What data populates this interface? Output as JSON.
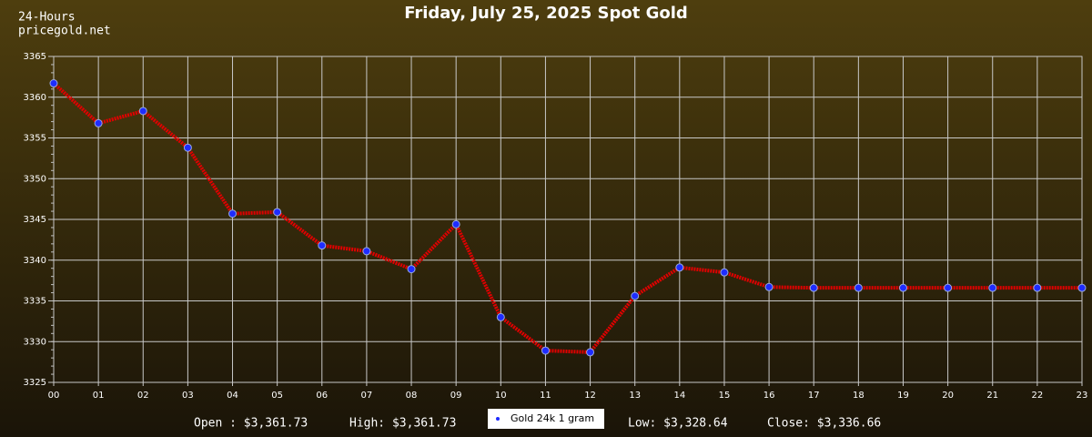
{
  "chart_data": {
    "type": "line",
    "title": "Friday, July 25, 2025 Spot Gold",
    "corner_labels": [
      "24-Hours",
      "pricegold.net"
    ],
    "categories": [
      "00",
      "01",
      "02",
      "03",
      "04",
      "05",
      "06",
      "07",
      "08",
      "09",
      "10",
      "11",
      "12",
      "13",
      "14",
      "15",
      "16",
      "17",
      "18",
      "19",
      "20",
      "21",
      "22",
      "23"
    ],
    "series": [
      {
        "name": "Gold 24k 1 gram",
        "color": "#e00000",
        "marker_color": "#1e2cff",
        "values": [
          3361.7,
          3356.8,
          3358.3,
          3353.8,
          3345.7,
          3345.9,
          3341.8,
          3341.1,
          3338.9,
          3344.4,
          3333.0,
          3328.9,
          3328.7,
          3335.6,
          3339.1,
          3338.5,
          3336.7,
          3336.6,
          3336.6,
          3336.6,
          3336.6,
          3336.6,
          3336.6,
          3336.6
        ]
      }
    ],
    "ylim": [
      3325,
      3365
    ],
    "yticks": [
      3325,
      3330,
      3335,
      3340,
      3345,
      3350,
      3355,
      3360,
      3365
    ],
    "grid": true,
    "stats_left": [
      "Open : $3,361.73",
      "High: $3,361.73"
    ],
    "stats_right": [
      "Low: $3,328.64",
      "Close: $3,336.66"
    ]
  }
}
